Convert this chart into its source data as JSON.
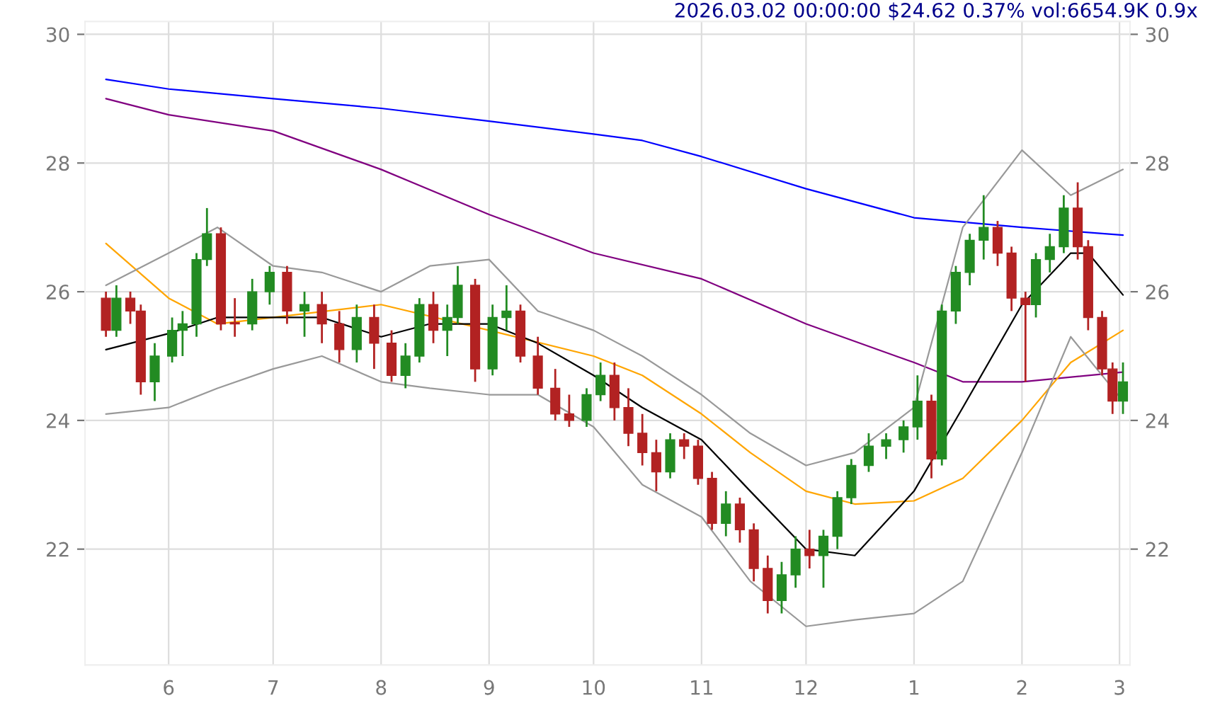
{
  "chart_data": {
    "type": "candlestick",
    "title": "2026.03.02 00:00:00 $24.62 0.37% vol:6654.9K 0.9x",
    "x": [
      "2025-05-14",
      "2025-05-17",
      "2025-05-21",
      "2025-05-24",
      "2025-05-28",
      "2025-06-02",
      "2025-06-05",
      "2025-06-09",
      "2025-06-12",
      "2025-06-16",
      "2025-06-20",
      "2025-06-25",
      "2025-06-30",
      "2025-07-05",
      "2025-07-10",
      "2025-07-15",
      "2025-07-20",
      "2025-07-25",
      "2025-07-30",
      "2025-08-04",
      "2025-08-08",
      "2025-08-12",
      "2025-08-16",
      "2025-08-20",
      "2025-08-23",
      "2025-08-28",
      "2025-09-02",
      "2025-09-06",
      "2025-09-10",
      "2025-09-15",
      "2025-09-20",
      "2025-09-24",
      "2025-09-29",
      "2025-10-03",
      "2025-10-07",
      "2025-10-11",
      "2025-10-15",
      "2025-10-19",
      "2025-10-23",
      "2025-10-27",
      "2025-10-31",
      "2025-11-04",
      "2025-11-08",
      "2025-11-12",
      "2025-11-16",
      "2025-11-20",
      "2025-11-24",
      "2025-11-28",
      "2025-12-02",
      "2025-12-06",
      "2025-12-10",
      "2025-12-14",
      "2025-12-19",
      "2025-12-24",
      "2025-12-29",
      "2026-01-02",
      "2026-01-06",
      "2026-01-09",
      "2026-01-13",
      "2026-01-17",
      "2026-01-21",
      "2026-01-25",
      "2026-01-29",
      "2026-02-02",
      "2026-02-05",
      "2026-02-09",
      "2026-02-13",
      "2026-02-17",
      "2026-02-20",
      "2026-02-24",
      "2026-02-27",
      "2026-03-02"
    ],
    "ohlc": [
      [
        25.9,
        26.0,
        25.3,
        25.4
      ],
      [
        25.4,
        26.1,
        25.3,
        25.9
      ],
      [
        25.9,
        26.0,
        25.5,
        25.7
      ],
      [
        25.7,
        25.8,
        24.4,
        24.6
      ],
      [
        24.6,
        25.2,
        24.3,
        25.0
      ],
      [
        25.0,
        25.6,
        24.9,
        25.4
      ],
      [
        25.4,
        25.7,
        25.0,
        25.5
      ],
      [
        25.5,
        26.6,
        25.3,
        26.5
      ],
      [
        26.5,
        27.3,
        26.4,
        26.9
      ],
      [
        26.9,
        27.0,
        25.4,
        25.5
      ],
      [
        25.5,
        25.9,
        25.3,
        25.5
      ],
      [
        25.5,
        26.2,
        25.4,
        26.0
      ],
      [
        26.0,
        26.4,
        25.8,
        26.3
      ],
      [
        26.3,
        26.4,
        25.5,
        25.7
      ],
      [
        25.7,
        26.0,
        25.3,
        25.8
      ],
      [
        25.8,
        26.0,
        25.2,
        25.5
      ],
      [
        25.5,
        25.7,
        24.9,
        25.1
      ],
      [
        25.1,
        25.8,
        24.9,
        25.6
      ],
      [
        25.6,
        25.8,
        24.8,
        25.2
      ],
      [
        25.2,
        25.4,
        24.6,
        24.7
      ],
      [
        24.7,
        25.2,
        24.5,
        25.0
      ],
      [
        25.0,
        25.9,
        24.9,
        25.8
      ],
      [
        25.8,
        26.0,
        25.2,
        25.4
      ],
      [
        25.4,
        25.8,
        25.0,
        25.6
      ],
      [
        25.6,
        26.4,
        25.5,
        26.1
      ],
      [
        26.1,
        26.2,
        24.6,
        24.8
      ],
      [
        24.8,
        25.8,
        24.7,
        25.6
      ],
      [
        25.6,
        26.1,
        25.4,
        25.7
      ],
      [
        25.7,
        25.8,
        24.9,
        25.0
      ],
      [
        25.0,
        25.3,
        24.4,
        24.5
      ],
      [
        24.5,
        24.8,
        24.0,
        24.1
      ],
      [
        24.1,
        24.4,
        23.9,
        24.0
      ],
      [
        24.0,
        24.5,
        23.9,
        24.4
      ],
      [
        24.4,
        24.9,
        24.3,
        24.7
      ],
      [
        24.7,
        24.9,
        24.0,
        24.2
      ],
      [
        24.2,
        24.5,
        23.6,
        23.8
      ],
      [
        23.8,
        24.1,
        23.3,
        23.5
      ],
      [
        23.5,
        23.7,
        22.9,
        23.2
      ],
      [
        23.2,
        23.8,
        23.1,
        23.7
      ],
      [
        23.7,
        23.8,
        23.4,
        23.6
      ],
      [
        23.6,
        23.7,
        23.0,
        23.1
      ],
      [
        23.1,
        23.2,
        22.3,
        22.4
      ],
      [
        22.4,
        22.9,
        22.2,
        22.7
      ],
      [
        22.7,
        22.8,
        22.1,
        22.3
      ],
      [
        22.3,
        22.4,
        21.5,
        21.7
      ],
      [
        21.7,
        21.9,
        21.0,
        21.2
      ],
      [
        21.2,
        21.8,
        21.0,
        21.6
      ],
      [
        21.6,
        22.2,
        21.4,
        22.0
      ],
      [
        22.0,
        22.3,
        21.7,
        21.9
      ],
      [
        21.9,
        22.3,
        21.4,
        22.2
      ],
      [
        22.2,
        22.9,
        22.0,
        22.8
      ],
      [
        22.8,
        23.4,
        22.7,
        23.3
      ],
      [
        23.3,
        23.8,
        23.2,
        23.6
      ],
      [
        23.6,
        23.8,
        23.4,
        23.7
      ],
      [
        23.7,
        24.0,
        23.5,
        23.9
      ],
      [
        23.9,
        24.7,
        23.7,
        24.3
      ],
      [
        24.3,
        24.4,
        23.1,
        23.4
      ],
      [
        23.4,
        25.8,
        23.3,
        25.7
      ],
      [
        25.7,
        26.4,
        25.5,
        26.3
      ],
      [
        26.3,
        26.9,
        26.1,
        26.8
      ],
      [
        26.8,
        27.5,
        26.5,
        27.0
      ],
      [
        27.0,
        27.1,
        26.4,
        26.6
      ],
      [
        26.6,
        26.7,
        25.7,
        25.9
      ],
      [
        25.9,
        26.0,
        24.6,
        25.8
      ],
      [
        25.8,
        26.6,
        25.6,
        26.5
      ],
      [
        26.5,
        26.9,
        26.3,
        26.7
      ],
      [
        26.7,
        27.5,
        26.6,
        27.3
      ],
      [
        27.3,
        27.7,
        26.5,
        26.7
      ],
      [
        26.7,
        26.8,
        25.4,
        25.6
      ],
      [
        25.6,
        25.7,
        24.7,
        24.8
      ],
      [
        24.8,
        24.9,
        24.1,
        24.3
      ],
      [
        24.3,
        24.9,
        24.1,
        24.6
      ]
    ],
    "colors": [
      "#b22222",
      "#228b22",
      "#b22222",
      "#b22222",
      "#228b22",
      "#228b22",
      "#228b22",
      "#228b22",
      "#228b22",
      "#b22222",
      "#b22222",
      "#228b22",
      "#228b22",
      "#b22222",
      "#228b22",
      "#b22222",
      "#b22222",
      "#228b22",
      "#b22222",
      "#b22222",
      "#228b22",
      "#228b22",
      "#b22222",
      "#228b22",
      "#228b22",
      "#b22222",
      "#228b22",
      "#228b22",
      "#b22222",
      "#b22222",
      "#b22222",
      "#b22222",
      "#228b22",
      "#228b22",
      "#b22222",
      "#b22222",
      "#b22222",
      "#b22222",
      "#228b22",
      "#b22222",
      "#b22222",
      "#b22222",
      "#228b22",
      "#b22222",
      "#b22222",
      "#b22222",
      "#228b22",
      "#228b22",
      "#b22222",
      "#228b22",
      "#228b22",
      "#228b22",
      "#228b22",
      "#228b22",
      "#228b22",
      "#228b22",
      "#b22222",
      "#228b22",
      "#228b22",
      "#228b22",
      "#228b22",
      "#b22222",
      "#b22222",
      "#b22222",
      "#228b22",
      "#228b22",
      "#228b22",
      "#b22222",
      "#b22222",
      "#b22222",
      "#b22222",
      "#228b22"
    ],
    "series": [
      {
        "type": "line",
        "color": "#0000ff",
        "x": [
          "2025-05-14",
          "2025-06-01",
          "2025-07-01",
          "2025-08-01",
          "2025-09-01",
          "2025-10-01",
          "2025-10-15",
          "2025-11-01",
          "2025-12-01",
          "2026-01-01",
          "2026-02-01",
          "2026-03-02"
        ],
        "values": [
          29.3,
          29.15,
          29.0,
          28.85,
          28.65,
          28.45,
          28.35,
          28.1,
          27.6,
          27.15,
          27.0,
          26.88
        ]
      },
      {
        "type": "line",
        "color": "#800080",
        "x": [
          "2025-05-14",
          "2025-06-01",
          "2025-07-01",
          "2025-08-01",
          "2025-09-01",
          "2025-10-01",
          "2025-11-01",
          "2025-12-01",
          "2026-01-01",
          "2026-01-15",
          "2026-02-01",
          "2026-03-02"
        ],
        "values": [
          29.0,
          28.75,
          28.5,
          27.9,
          27.2,
          26.6,
          26.2,
          25.5,
          24.9,
          24.6,
          24.6,
          24.75
        ]
      },
      {
        "type": "line",
        "color": "#ffa500",
        "x": [
          "2025-05-14",
          "2025-06-01",
          "2025-06-15",
          "2025-07-01",
          "2025-08-01",
          "2025-09-01",
          "2025-10-01",
          "2025-10-15",
          "2025-11-01",
          "2025-11-15",
          "2025-12-01",
          "2025-12-15",
          "2026-01-01",
          "2026-01-15",
          "2026-02-01",
          "2026-02-15",
          "2026-03-02"
        ],
        "values": [
          26.75,
          25.9,
          25.5,
          25.6,
          25.8,
          25.4,
          25.0,
          24.7,
          24.1,
          23.5,
          22.9,
          22.7,
          22.75,
          23.1,
          24.0,
          24.9,
          25.4
        ]
      },
      {
        "type": "line",
        "color": "#000000",
        "x": [
          "2025-05-14",
          "2025-06-01",
          "2025-06-15",
          "2025-07-01",
          "2025-07-15",
          "2025-08-01",
          "2025-08-15",
          "2025-09-01",
          "2025-09-15",
          "2025-10-01",
          "2025-10-15",
          "2025-11-01",
          "2025-11-15",
          "2025-12-01",
          "2025-12-15",
          "2026-01-01",
          "2026-01-15",
          "2026-02-01",
          "2026-02-15",
          "2026-02-20",
          "2026-03-02"
        ],
        "values": [
          25.1,
          25.35,
          25.6,
          25.6,
          25.6,
          25.3,
          25.5,
          25.5,
          25.2,
          24.7,
          24.2,
          23.7,
          22.9,
          22.0,
          21.9,
          22.9,
          24.2,
          25.8,
          26.6,
          26.6,
          25.95
        ]
      },
      {
        "type": "line",
        "color": "#999999",
        "x": [
          "2025-05-14",
          "2025-06-01",
          "2025-06-15",
          "2025-07-01",
          "2025-07-15",
          "2025-08-01",
          "2025-08-15",
          "2025-09-01",
          "2025-09-15",
          "2025-10-01",
          "2025-10-15",
          "2025-11-01",
          "2025-11-15",
          "2025-12-01",
          "2025-12-15",
          "2026-01-01",
          "2026-01-15",
          "2026-02-01",
          "2026-02-15",
          "2026-03-02"
        ],
        "values": [
          26.1,
          26.6,
          27.0,
          26.4,
          26.3,
          26.0,
          26.4,
          26.5,
          25.7,
          25.4,
          25.0,
          24.4,
          23.8,
          23.3,
          23.5,
          24.2,
          27.0,
          28.2,
          27.5,
          27.9
        ]
      },
      {
        "type": "line",
        "color": "#999999",
        "x": [
          "2025-05-14",
          "2025-06-01",
          "2025-06-15",
          "2025-07-01",
          "2025-07-15",
          "2025-08-01",
          "2025-08-15",
          "2025-09-01",
          "2025-09-15",
          "2025-10-01",
          "2025-10-15",
          "2025-11-01",
          "2025-11-15",
          "2025-12-01",
          "2025-12-15",
          "2026-01-01",
          "2026-01-15",
          "2026-02-01",
          "2026-02-15",
          "2026-03-02"
        ],
        "values": [
          24.1,
          24.2,
          24.5,
          24.8,
          25.0,
          24.6,
          24.5,
          24.4,
          24.4,
          23.9,
          23.0,
          22.5,
          21.5,
          20.8,
          20.9,
          21.0,
          21.5,
          23.5,
          25.3,
          24.3
        ]
      }
    ],
    "xlim": [
      "2025-05-08",
      "2026-03-04"
    ],
    "xticks": [
      {
        "value": "2025-06-01",
        "label": "6"
      },
      {
        "value": "2025-07-01",
        "label": "7"
      },
      {
        "value": "2025-08-01",
        "label": "8"
      },
      {
        "value": "2025-09-01",
        "label": "9"
      },
      {
        "value": "2025-10-01",
        "label": "10"
      },
      {
        "value": "2025-11-01",
        "label": "11"
      },
      {
        "value": "2025-12-01",
        "label": "12"
      },
      {
        "value": "2026-01-01",
        "label": "1"
      },
      {
        "value": "2026-02-01",
        "label": "2"
      },
      {
        "value": "2026-03-01",
        "label": "3"
      }
    ],
    "ylim": [
      20.2,
      30.2
    ],
    "yticks": [
      22,
      24,
      26,
      28,
      30
    ],
    "y2lim": [
      20.2,
      30.2
    ],
    "y2ticks": [
      22,
      24,
      26,
      28,
      30
    ],
    "grid": true
  }
}
